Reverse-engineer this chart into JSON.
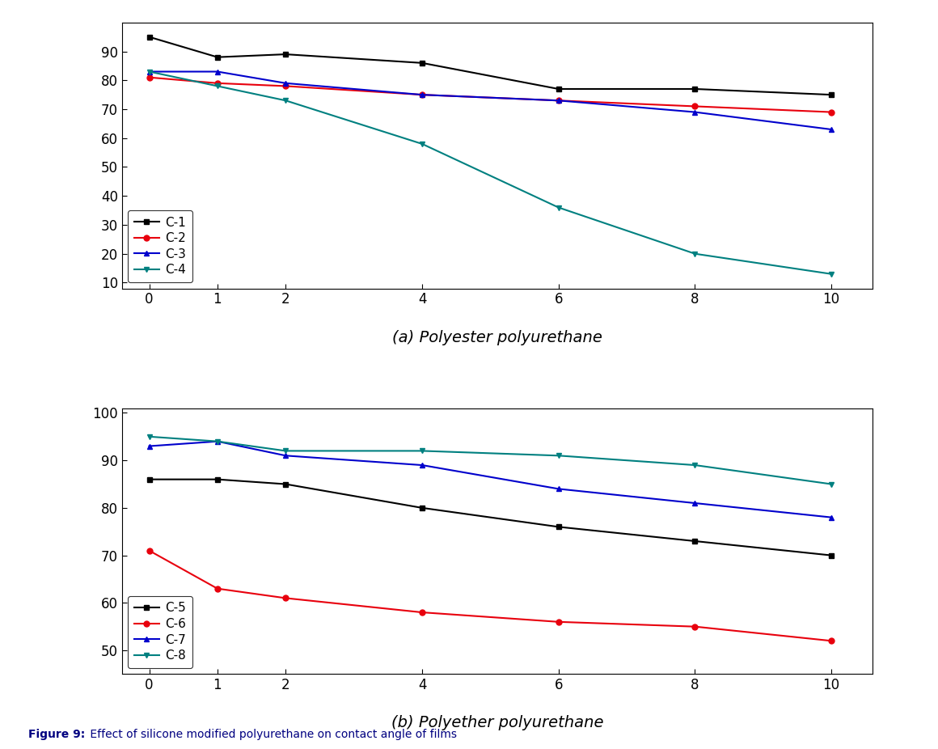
{
  "x": [
    0,
    1,
    2,
    4,
    6,
    8,
    10
  ],
  "chart_a": {
    "title": "(a) Polyester polyurethane",
    "C1": {
      "label": "C-1",
      "color": "#000000",
      "marker": "s",
      "values": [
        95,
        88,
        89,
        86,
        77,
        77,
        75
      ]
    },
    "C2": {
      "label": "C-2",
      "color": "#e8000d",
      "marker": "o",
      "values": [
        81,
        79,
        78,
        75,
        73,
        71,
        69
      ]
    },
    "C3": {
      "label": "C-3",
      "color": "#0000cc",
      "marker": "^",
      "values": [
        83,
        83,
        79,
        75,
        73,
        69,
        63
      ]
    },
    "C4": {
      "label": "C-4",
      "color": "#008080",
      "marker": "v",
      "values": [
        83,
        78,
        73,
        58,
        36,
        20,
        13
      ]
    }
  },
  "chart_b": {
    "title": "(b) Polyether polyurethane",
    "C5": {
      "label": "C-5",
      "color": "#000000",
      "marker": "s",
      "values": [
        86,
        86,
        85,
        80,
        76,
        73,
        70
      ]
    },
    "C6": {
      "label": "C-6",
      "color": "#e8000d",
      "marker": "o",
      "values": [
        71,
        63,
        61,
        58,
        56,
        55,
        52
      ]
    },
    "C7": {
      "label": "C-7",
      "color": "#0000cc",
      "marker": "^",
      "values": [
        93,
        94,
        91,
        89,
        84,
        81,
        78
      ]
    },
    "C8": {
      "label": "C-8",
      "color": "#008080",
      "marker": "v",
      "values": [
        95,
        94,
        92,
        92,
        91,
        89,
        85
      ]
    }
  },
  "figure_caption_bold": "Figure 9:",
  "figure_caption_normal": " Effect of silicone modified polyurethane on contact angle of films",
  "background_color": "#ffffff",
  "line_width": 1.5,
  "marker_size": 5
}
